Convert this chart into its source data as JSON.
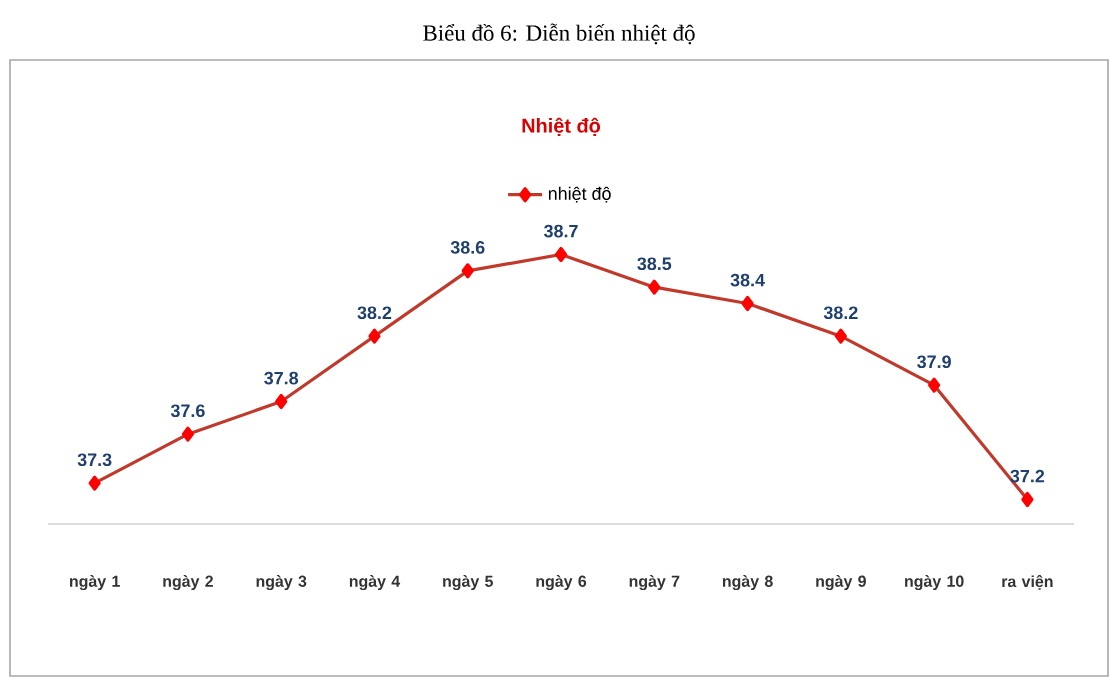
{
  "chart_data": {
    "type": "line",
    "title": "Nhiệt độ",
    "subtitle": "Biểu đồ 6: Diễn biến nhiệt độ",
    "categories": [
      "ngày 1",
      "ngày 2",
      "ngày 3",
      "ngày 4",
      "ngày 5",
      "ngày 6",
      "ngày 7",
      "ngày 8",
      "ngày 9",
      "ngày 10",
      "ra viện"
    ],
    "series": [
      {
        "name": "nhiệt độ",
        "color": "#c0392b",
        "values": [
          37.3,
          37.6,
          37.8,
          38.2,
          38.6,
          38.7,
          38.5,
          38.4,
          38.2,
          37.9,
          37.2
        ]
      }
    ],
    "data_labels": true,
    "marker": "diamond",
    "line_style": "solid",
    "legend": "top",
    "grid": false,
    "tick_labels": "x"
  }
}
